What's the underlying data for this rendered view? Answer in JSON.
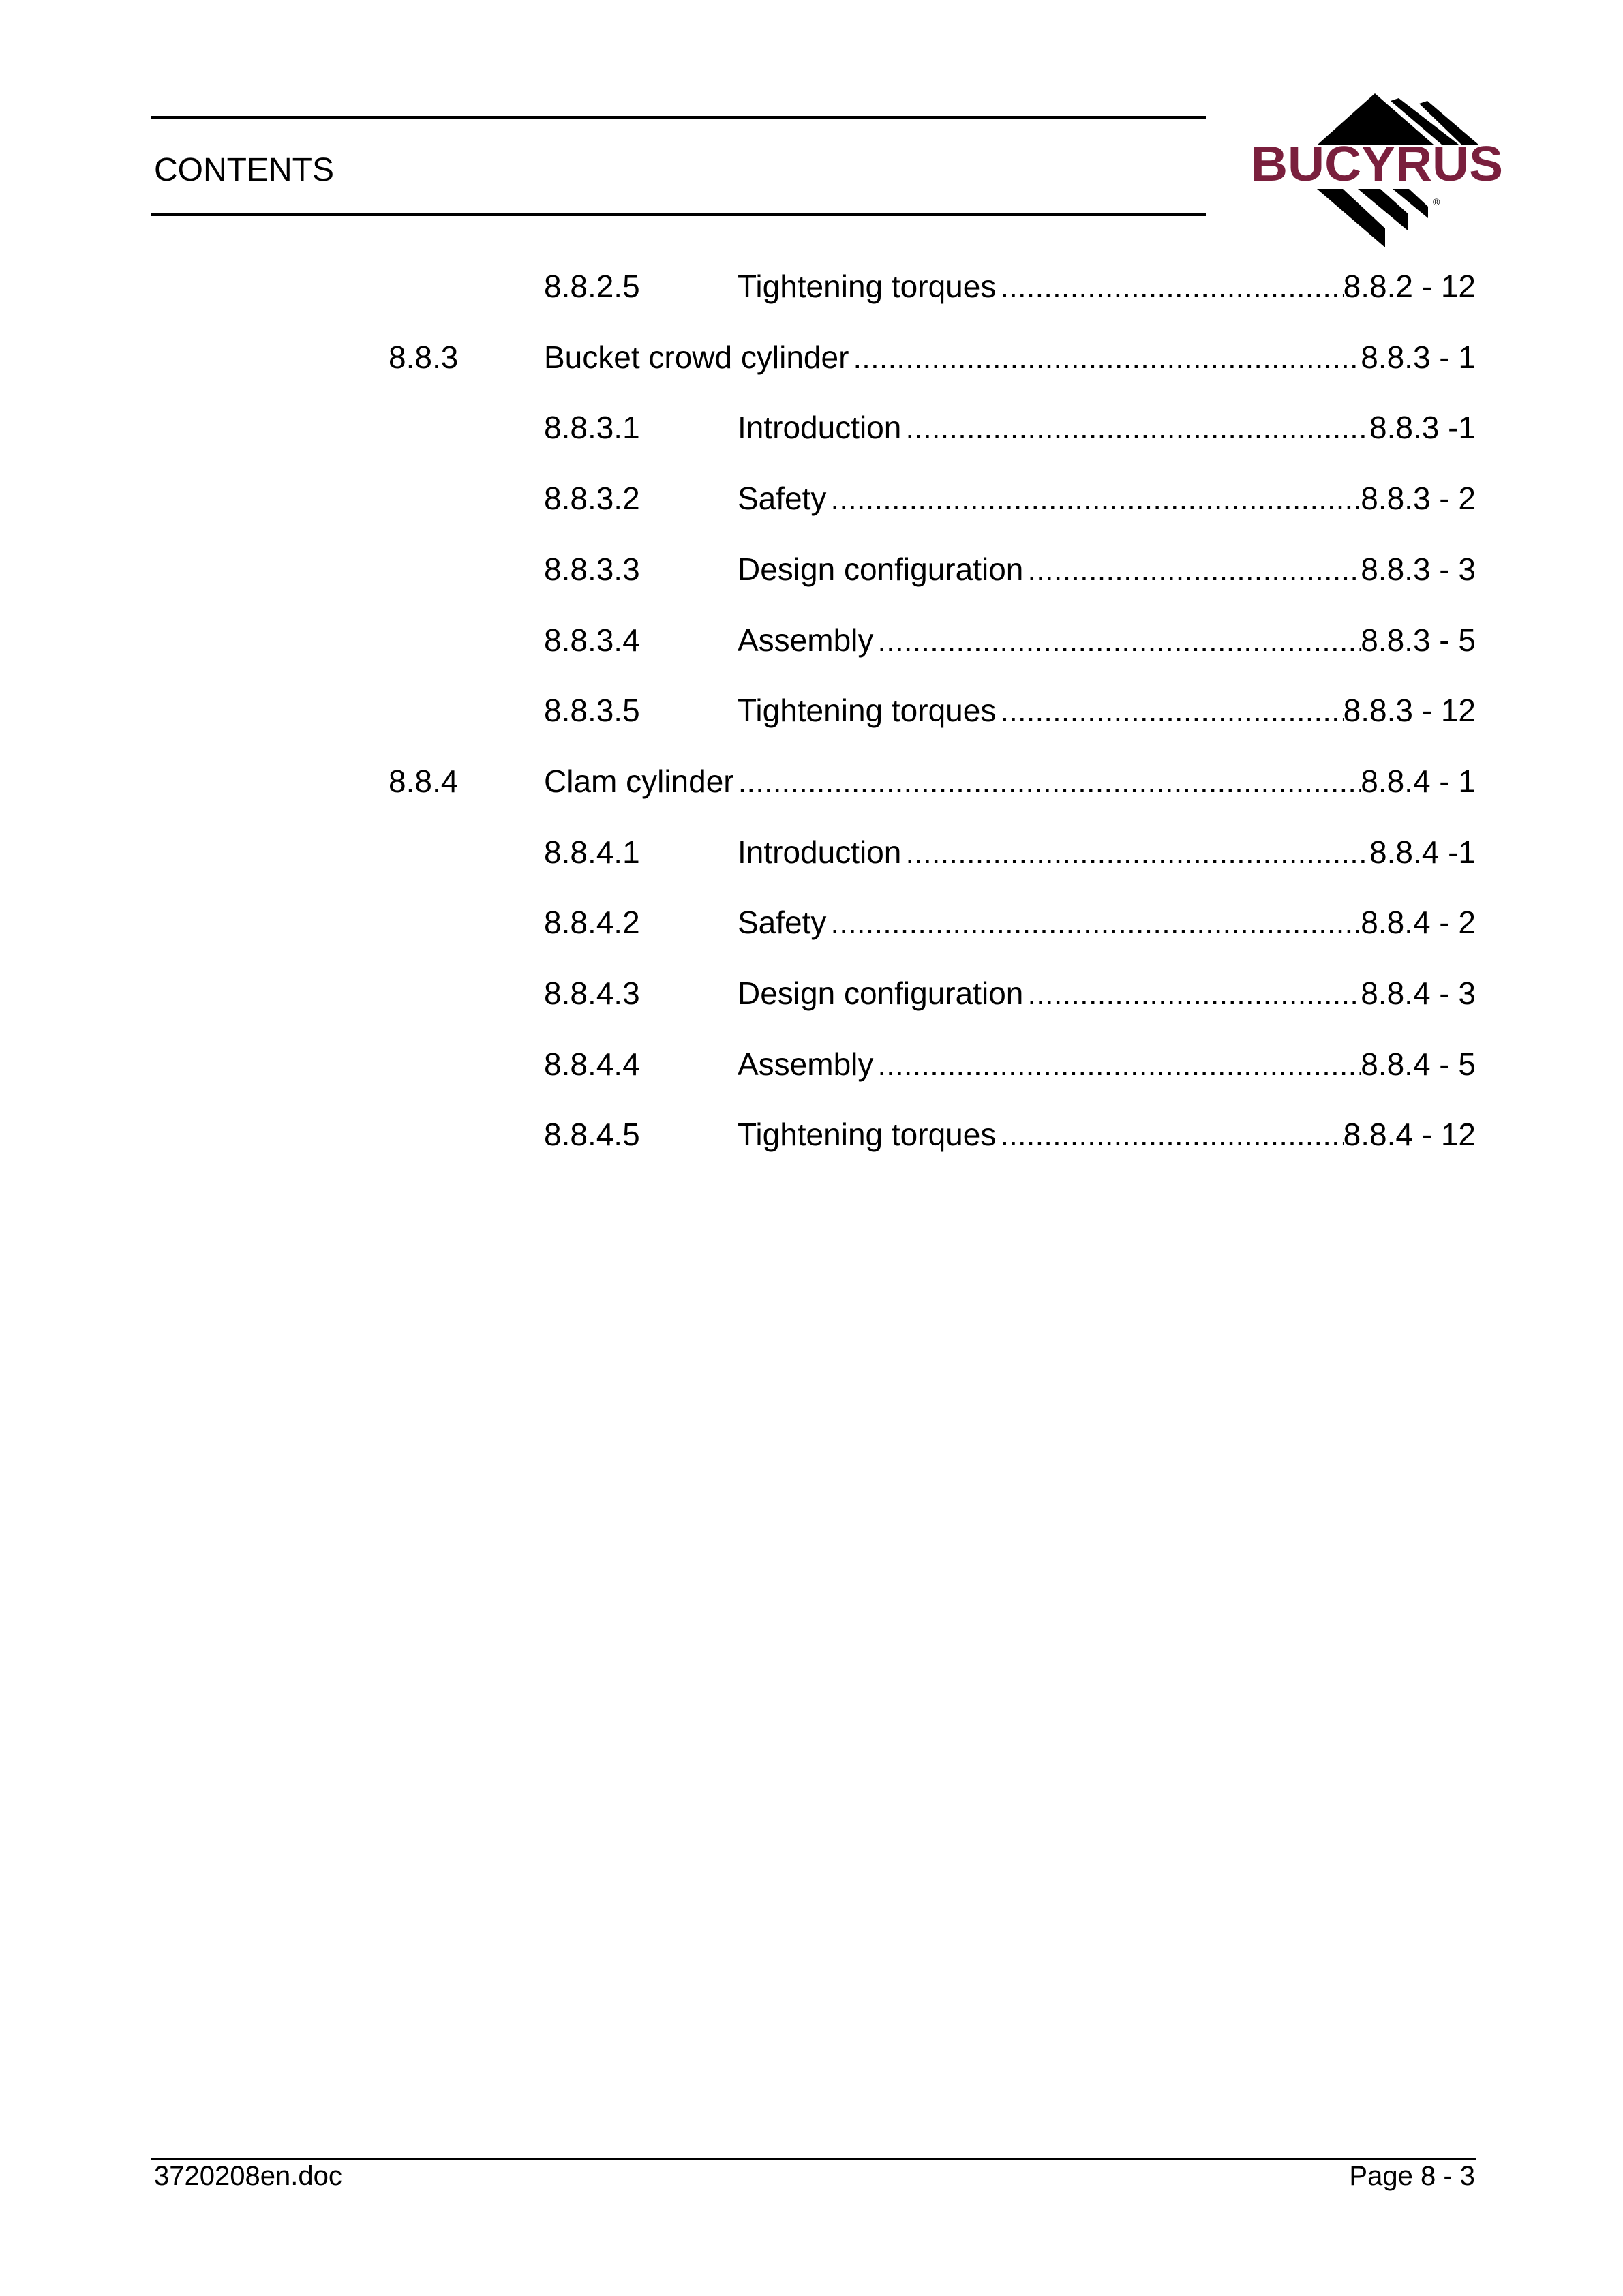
{
  "header": {
    "title": "CONTENTS",
    "logo_text": "BUCYRUS",
    "logo_color": "#7a1f3d"
  },
  "toc": [
    {
      "level": 2,
      "number": "8.8.2.5",
      "title": "Tightening torques",
      "page": "8.8.2 - 12"
    },
    {
      "level": 1,
      "number": "8.8.3",
      "title": "Bucket crowd cylinder",
      "page": "8.8.3 - 1"
    },
    {
      "level": 2,
      "number": "8.8.3.1",
      "title": "Introduction",
      "page": "8.8.3 -1"
    },
    {
      "level": 2,
      "number": "8.8.3.2",
      "title": "Safety",
      "page": "8.8.3 - 2"
    },
    {
      "level": 2,
      "number": "8.8.3.3",
      "title": "Design configuration",
      "page": "8.8.3 - 3"
    },
    {
      "level": 2,
      "number": "8.8.3.4",
      "title": "Assembly",
      "page": "8.8.3 - 5"
    },
    {
      "level": 2,
      "number": "8.8.3.5",
      "title": "Tightening torques",
      "page": "8.8.3 - 12"
    },
    {
      "level": 1,
      "number": "8.8.4",
      "title": "Clam cylinder",
      "page": "8.8.4 - 1"
    },
    {
      "level": 2,
      "number": "8.8.4.1",
      "title": "Introduction",
      "page": "8.8.4 -1"
    },
    {
      "level": 2,
      "number": "8.8.4.2",
      "title": "Safety",
      "page": "8.8.4 - 2"
    },
    {
      "level": 2,
      "number": "8.8.4.3",
      "title": "Design configuration",
      "page": "8.8.4 - 3"
    },
    {
      "level": 2,
      "number": "8.8.4.4",
      "title": "Assembly",
      "page": "8.8.4 - 5"
    },
    {
      "level": 2,
      "number": "8.8.4.5",
      "title": "Tightening torques",
      "page": "8.8.4 - 12"
    }
  ],
  "footer": {
    "doc": "3720208en.doc",
    "page": "Page 8 - 3"
  }
}
